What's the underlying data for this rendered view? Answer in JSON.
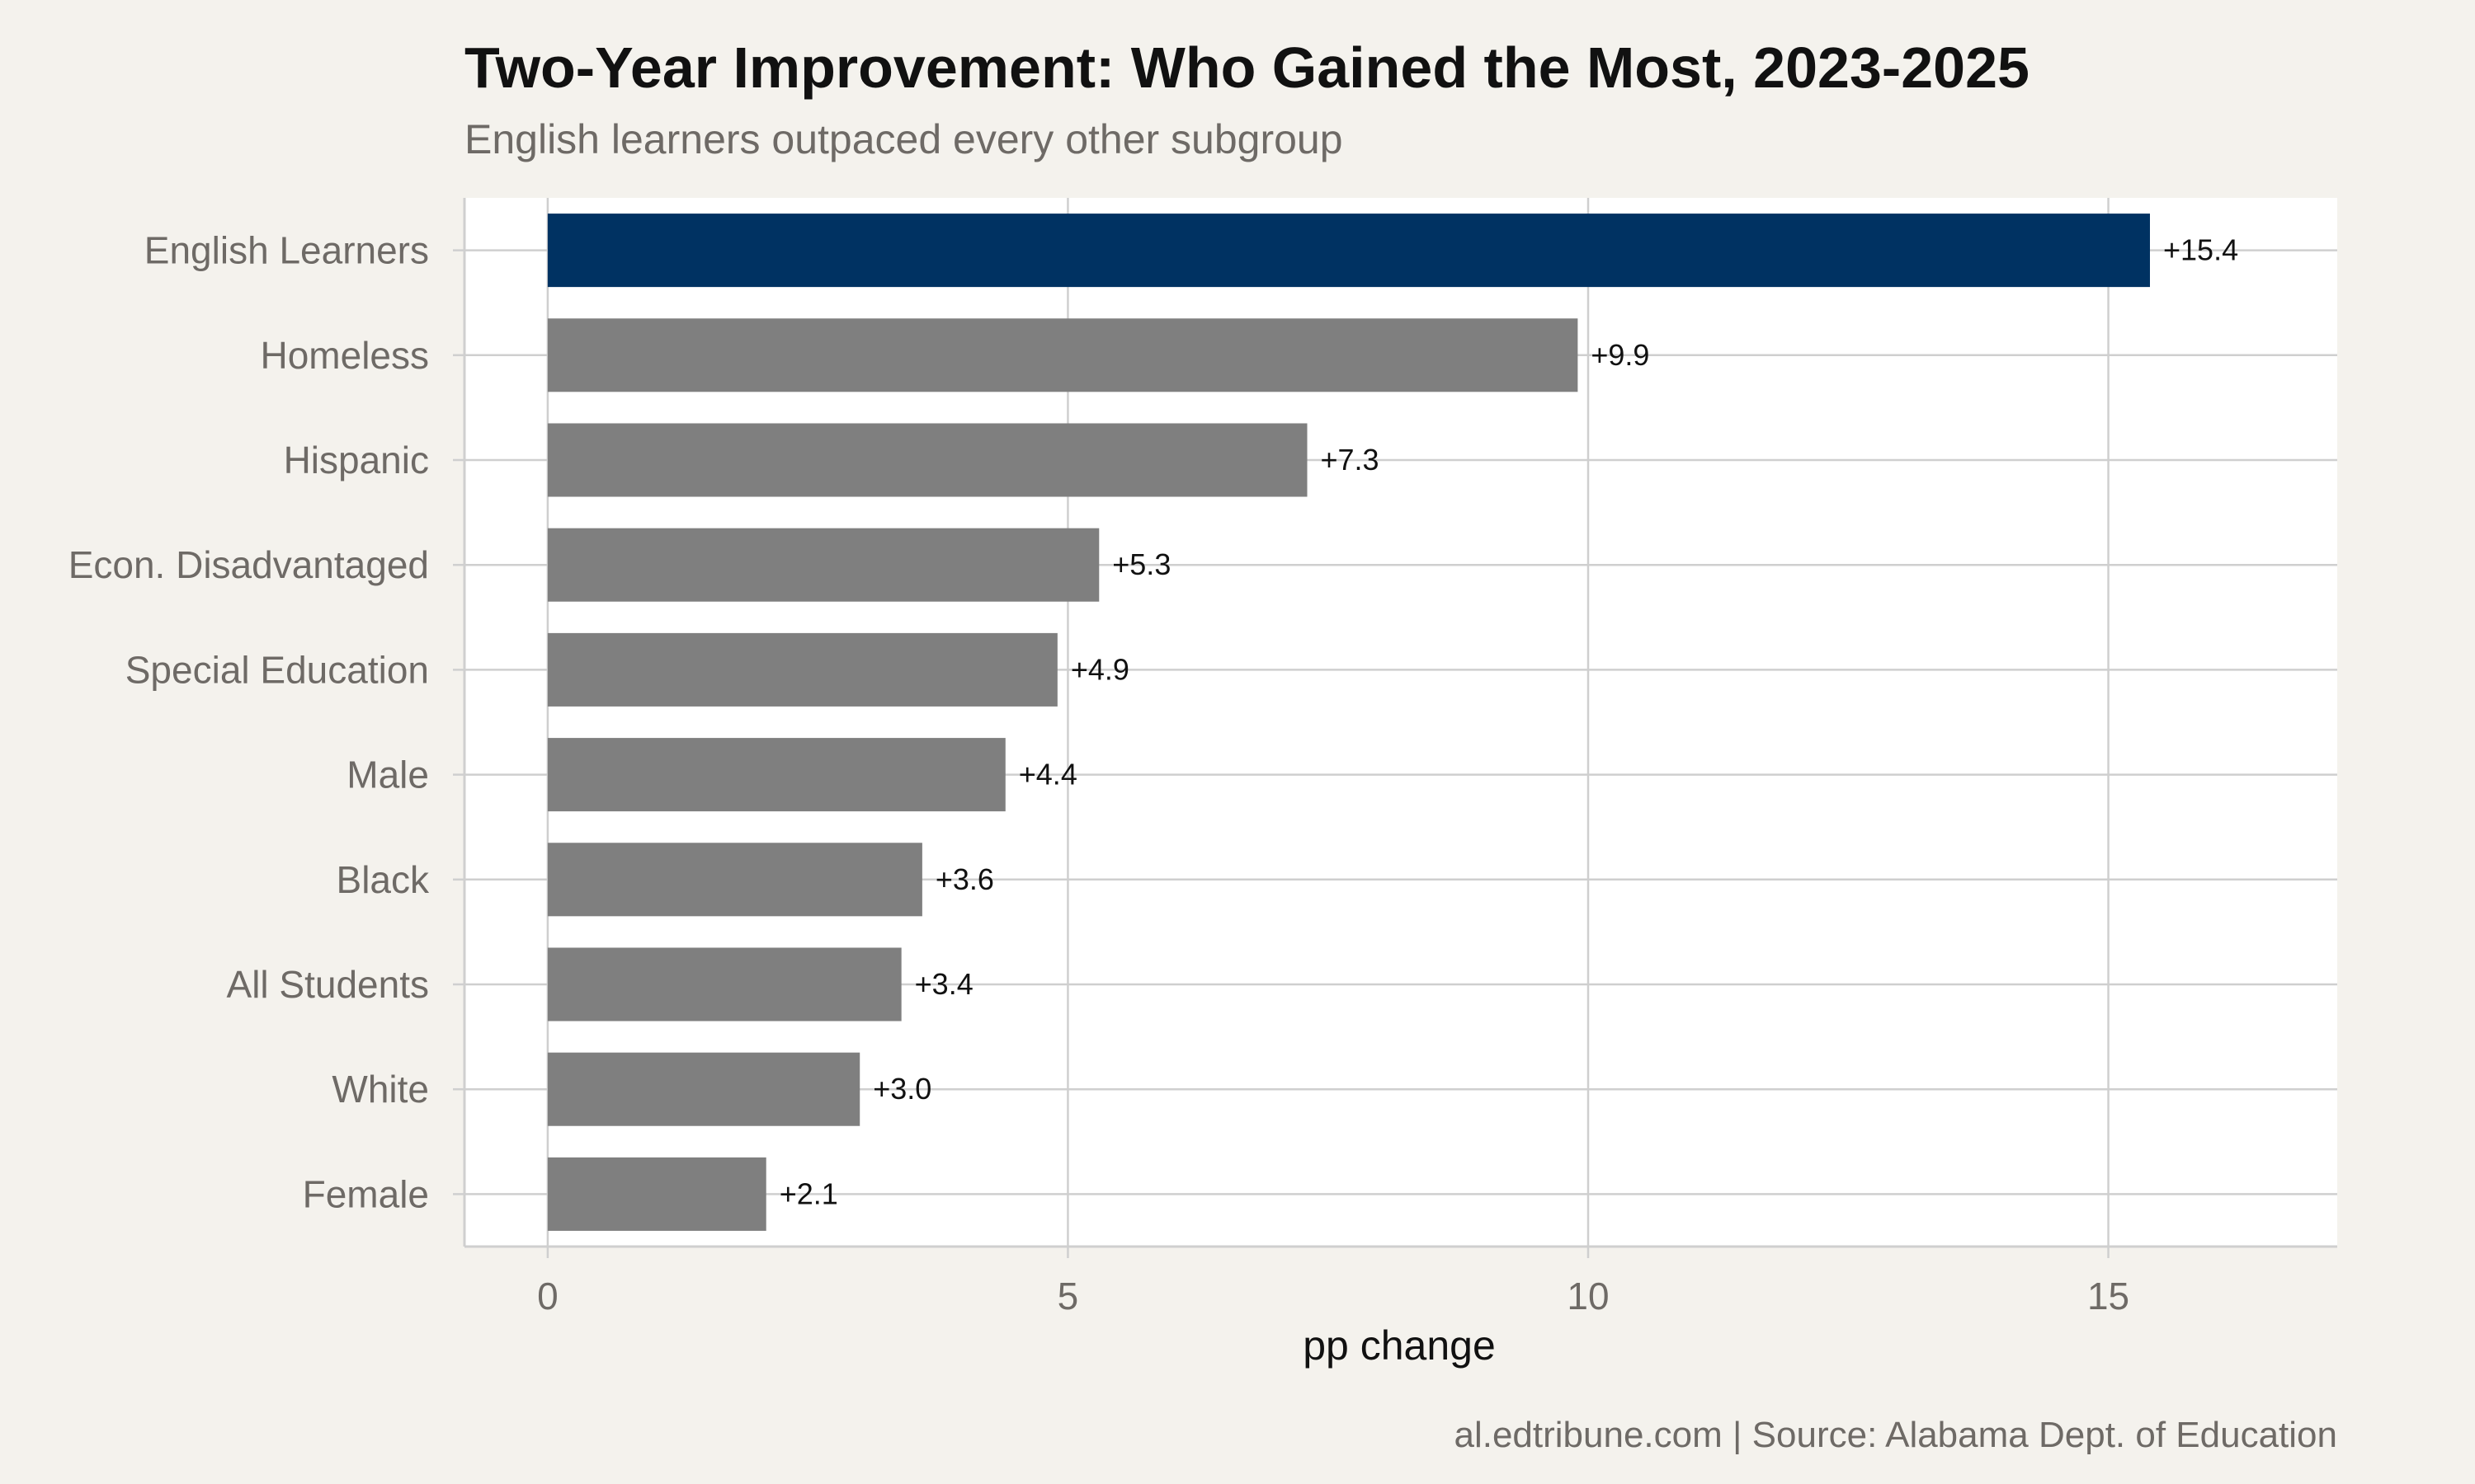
{
  "chart_data": {
    "type": "bar",
    "orientation": "horizontal",
    "title": "Two-Year Improvement: Who Gained the Most, 2023-2025",
    "subtitle": "English learners outpaced every other subgroup",
    "xlabel": "pp change",
    "ylabel": "",
    "caption": "al.edtribune.com | Source: Alabama Dept. of Education",
    "categories": [
      "English Learners",
      "Homeless",
      "Hispanic",
      "Econ. Disadvantaged",
      "Special Education",
      "Male",
      "Black",
      "All Students",
      "White",
      "Female"
    ],
    "values": [
      15.4,
      9.9,
      7.3,
      5.3,
      4.9,
      4.4,
      3.6,
      3.4,
      3.0,
      2.1
    ],
    "data_labels": [
      "+15.4",
      "+9.9",
      "+7.3",
      "+5.3",
      "+4.9",
      "+4.4",
      "+3.6",
      "+3.4",
      "+3.0",
      "+2.1"
    ],
    "highlight": "English Learners",
    "xlim": [
      -0.8,
      17.2
    ],
    "xticks": [
      0,
      5,
      10,
      15
    ],
    "xtick_labels": [
      "0",
      "5",
      "10",
      "15"
    ],
    "grid": true,
    "legend": "none",
    "colors": {
      "highlight": "#003262",
      "bar": "#7f7f7f",
      "background": "#f4f2ed",
      "panel": "#ffffff",
      "grid": "#cfcfcf",
      "title": "#111111",
      "muted_text": "#6e6a66"
    }
  }
}
